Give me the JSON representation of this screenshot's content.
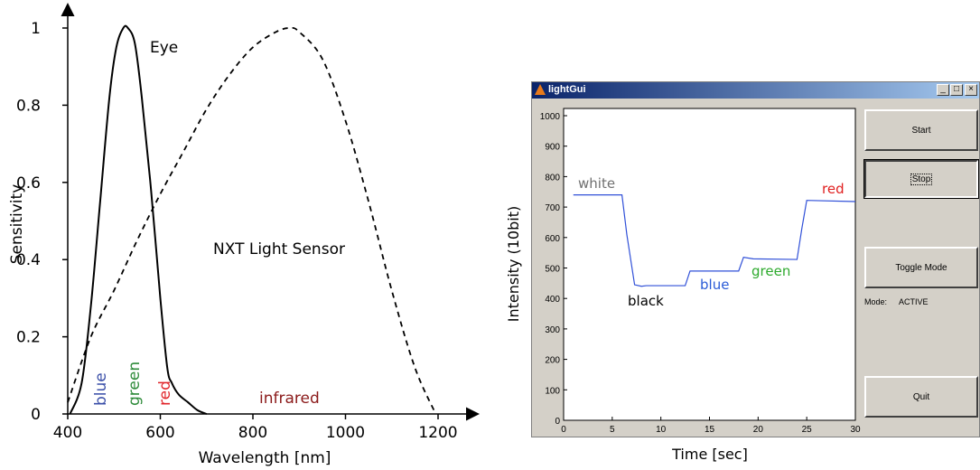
{
  "chart_data": [
    {
      "type": "line",
      "xlabel": "Wavelength [nm]",
      "ylabel": "Sensitivity",
      "xlim": [
        400,
        1250
      ],
      "ylim": [
        0,
        1.05
      ],
      "x_ticks": [
        400,
        600,
        800,
        1000,
        1200
      ],
      "y_ticks": [
        0,
        0.2,
        0.4,
        0.6,
        0.8,
        1
      ],
      "y_tick_labels": [
        "0",
        "0.2",
        "0.4",
        "0.6",
        "0.8",
        "1"
      ],
      "series": [
        {
          "name": "Eye",
          "style": "solid",
          "x": [
            405,
            430,
            450,
            470,
            490,
            505,
            520,
            530,
            545,
            560,
            580,
            600,
            615,
            625,
            640,
            660,
            680,
            700
          ],
          "y": [
            0,
            0.08,
            0.28,
            0.55,
            0.82,
            0.95,
            1.0,
            1.0,
            0.96,
            0.82,
            0.58,
            0.3,
            0.12,
            0.08,
            0.05,
            0.03,
            0.01,
            0
          ]
        },
        {
          "name": "NXT Light Sensor",
          "style": "dashed",
          "x": [
            400,
            450,
            500,
            550,
            600,
            650,
            700,
            750,
            800,
            850,
            880,
            900,
            950,
            1000,
            1050,
            1100,
            1150,
            1195
          ],
          "y": [
            0.03,
            0.2,
            0.32,
            0.45,
            0.57,
            0.68,
            0.79,
            0.88,
            0.95,
            0.99,
            1.0,
            0.99,
            0.92,
            0.76,
            0.55,
            0.32,
            0.12,
            0
          ]
        }
      ],
      "annotations": {
        "eye": "Eye",
        "sensor": "NXT Light Sensor",
        "blue": "blue",
        "green": "green",
        "red": "red",
        "infrared": "infrared"
      },
      "colors": {
        "blue": "#3a4fa8",
        "green": "#2e8b3a",
        "red": "#e0252a",
        "infrared": "#8b1a1a"
      }
    },
    {
      "type": "line",
      "xlabel": "Time [sec]",
      "ylabel": "Intensity (10bit)",
      "xlim": [
        0,
        30
      ],
      "ylim": [
        0,
        1000
      ],
      "x_ticks": [
        0,
        5,
        10,
        15,
        20,
        25,
        30
      ],
      "y_ticks": [
        0,
        100,
        200,
        300,
        400,
        500,
        600,
        700,
        800,
        900,
        1000
      ],
      "series": [
        {
          "color": "#3050d8",
          "x": [
            1,
            6,
            6.5,
            7.3,
            8,
            8.5,
            12.5,
            13,
            18,
            18.5,
            19.5,
            24,
            24.5,
            25,
            30
          ],
          "y": [
            740,
            740,
            610,
            445,
            440,
            442,
            442,
            490,
            490,
            535,
            530,
            528,
            630,
            722,
            718
          ]
        }
      ],
      "annotations": {
        "white": "white",
        "black": "black",
        "blue": "blue",
        "green": "green",
        "red": "red"
      },
      "colors": {
        "white": "#707070",
        "black": "#000000",
        "blue": "#2a5bd7",
        "green": "#2eaa2e",
        "red": "#e02020"
      }
    }
  ],
  "window": {
    "title": "lightGui",
    "minimize": "_",
    "maximize": "□",
    "close": "×"
  },
  "buttons": {
    "start": "Start",
    "stop": "Stop",
    "toggle_mode": "Toggle Mode",
    "quit": "Quit"
  },
  "mode": {
    "label": "Mode:",
    "value": "ACTIVE"
  }
}
